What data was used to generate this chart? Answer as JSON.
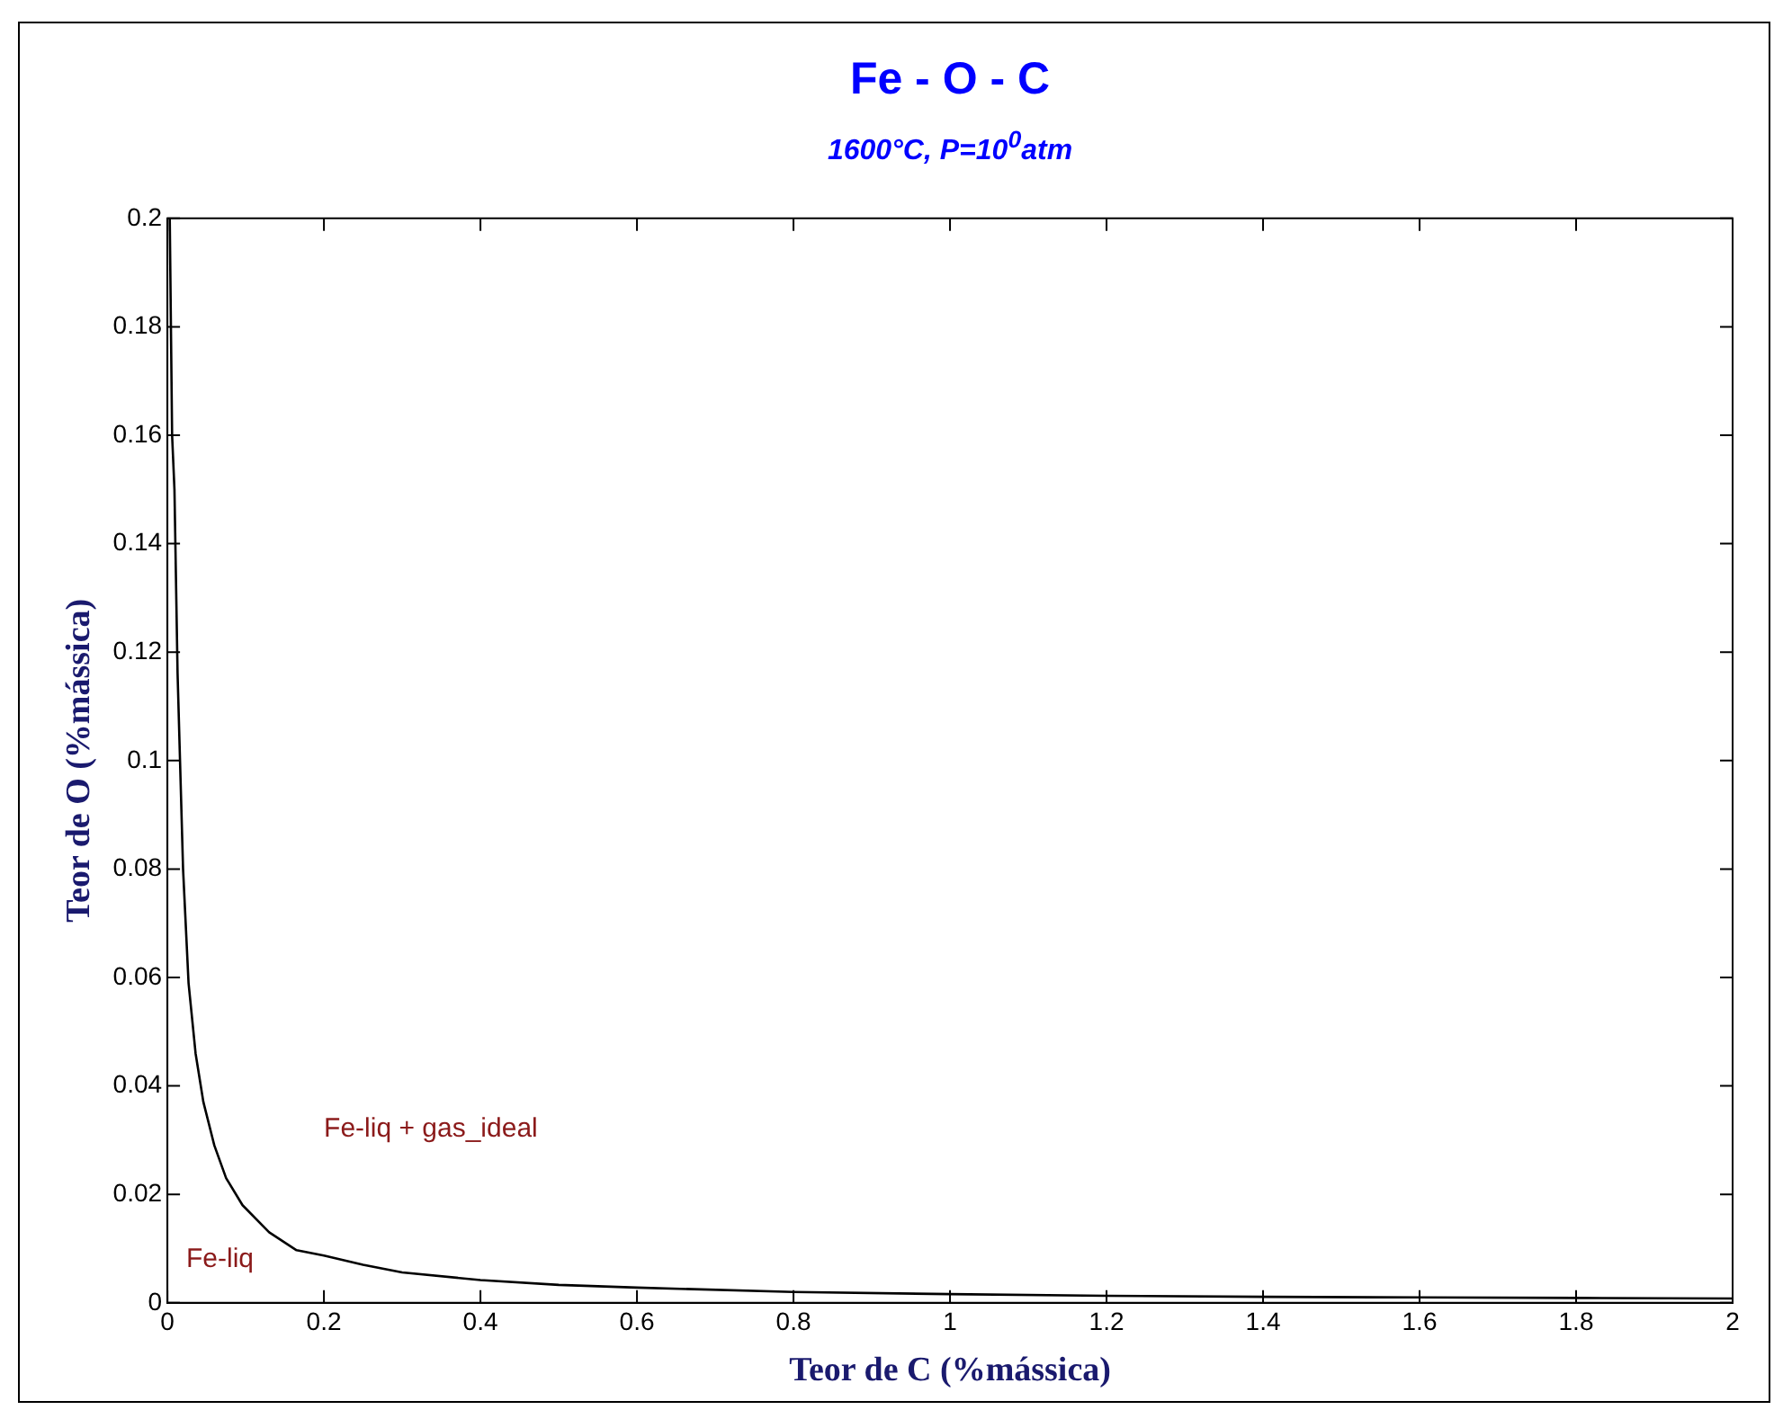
{
  "chart_data": {
    "type": "line",
    "title": "Fe - O - C",
    "subtitle": "1600°C, P=10$^{0}$atm",
    "xlabel": "Teor de C (%mássica)",
    "ylabel": "Teor de O (%mássica)",
    "series": [
      {
        "color": "#000000",
        "x": [
          0.003,
          0.006,
          0.009,
          0.013,
          0.02,
          0.027,
          0.036,
          0.046,
          0.06,
          0.075,
          0.096,
          0.13,
          0.165,
          0.2,
          0.25,
          0.3,
          0.4,
          0.5,
          0.6,
          0.8,
          1.0,
          1.2,
          1.4,
          1.6,
          1.8,
          2.0
        ],
        "values": [
          0.2,
          0.16,
          0.15,
          0.116,
          0.08,
          0.059,
          0.046,
          0.037,
          0.029,
          0.023,
          0.018,
          0.013,
          0.0097,
          0.0087,
          0.007,
          0.0056,
          0.0042,
          0.0033,
          0.0028,
          0.002,
          0.0016,
          0.0013,
          0.0011,
          0.001,
          0.0009,
          0.0008
        ]
      }
    ],
    "xlim": [
      0,
      2
    ],
    "xticks": [
      0,
      0.2,
      0.4,
      0.6,
      0.8,
      1,
      1.2,
      1.4,
      1.6,
      1.8,
      2
    ],
    "ylim": [
      0,
      0.2
    ],
    "yticks": [
      0,
      0.02,
      0.04,
      0.06,
      0.08,
      0.1,
      0.12,
      0.14,
      0.16,
      0.18,
      0.2
    ],
    "grid": false,
    "legend": false,
    "marker": "none",
    "line_style": "solid",
    "annotations": [
      "Fe-liq + gas_ideal",
      "Fe-liq"
    ]
  }
}
